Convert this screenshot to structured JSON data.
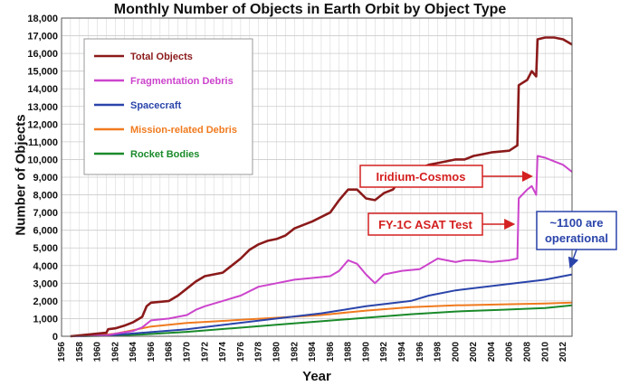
{
  "chart_data": {
    "type": "line",
    "title": "Monthly Number of Objects in Earth Orbit by Object Type",
    "xlabel": "Year",
    "ylabel": "Number of Objects",
    "xlim": [
      1956,
      2013
    ],
    "ylim": [
      0,
      18000
    ],
    "x_ticks": [
      1956,
      1958,
      1960,
      1962,
      1964,
      1966,
      1968,
      1970,
      1972,
      1974,
      1976,
      1978,
      1980,
      1982,
      1984,
      1986,
      1988,
      1990,
      1992,
      1994,
      1996,
      1998,
      2000,
      2002,
      2004,
      2006,
      2008,
      2010,
      2012
    ],
    "y_ticks": [
      0,
      1000,
      2000,
      3000,
      4000,
      5000,
      6000,
      7000,
      8000,
      9000,
      10000,
      11000,
      12000,
      13000,
      14000,
      15000,
      16000,
      17000,
      18000
    ],
    "series": [
      {
        "name": "Total Objects",
        "color": "#8b1a1a",
        "x": [
          1957,
          1961,
          1961.2,
          1962,
          1963,
          1964,
          1965,
          1965.5,
          1966,
          1968,
          1969,
          1970,
          1971,
          1972,
          1974,
          1975,
          1976,
          1977,
          1978,
          1979,
          1980,
          1981,
          1982,
          1984,
          1986,
          1987,
          1988,
          1989,
          1990,
          1991,
          1992,
          1993,
          1994,
          1996,
          1997,
          1998,
          2000,
          2001,
          2002,
          2003,
          2004,
          2006,
          2006.9,
          2007.05,
          2008,
          2008.5,
          2009,
          2009.15,
          2010,
          2011,
          2012,
          2013
        ],
        "y": [
          0,
          200,
          400,
          450,
          600,
          800,
          1100,
          1700,
          1900,
          2000,
          2300,
          2700,
          3100,
          3400,
          3600,
          4000,
          4400,
          4900,
          5200,
          5400,
          5500,
          5700,
          6100,
          6500,
          7000,
          7700,
          8300,
          8300,
          7800,
          7700,
          8100,
          8300,
          9000,
          9500,
          9700,
          9800,
          10000,
          10000,
          10200,
          10300,
          10400,
          10500,
          10800,
          14200,
          14500,
          15000,
          14700,
          16800,
          16900,
          16900,
          16800,
          16500
        ]
      },
      {
        "name": "Fragmentation Debris",
        "color": "#cc44cc",
        "x": [
          1957,
          1961,
          1962,
          1964,
          1965,
          1966,
          1968,
          1970,
          1971,
          1972,
          1974,
          1976,
          1978,
          1980,
          1982,
          1984,
          1986,
          1987,
          1988,
          1989,
          1990,
          1991,
          1992,
          1994,
          1996,
          1998,
          2000,
          2001,
          2002,
          2004,
          2006,
          2006.9,
          2007.05,
          2008,
          2008.5,
          2009,
          2009.15,
          2010,
          2011,
          2012,
          2013
        ],
        "y": [
          0,
          50,
          150,
          300,
          500,
          900,
          1000,
          1200,
          1500,
          1700,
          2000,
          2300,
          2800,
          3000,
          3200,
          3300,
          3400,
          3700,
          4300,
          4100,
          3500,
          3000,
          3500,
          3700,
          3800,
          4400,
          4200,
          4300,
          4300,
          4200,
          4300,
          4400,
          7800,
          8300,
          8500,
          8000,
          10200,
          10100,
          9900,
          9700,
          9300
        ]
      },
      {
        "name": "Spacecraft",
        "color": "#2a44aa",
        "x": [
          1957,
          1960,
          1962,
          1965,
          1970,
          1975,
          1980,
          1985,
          1990,
          1995,
          1997,
          2000,
          2005,
          2010,
          2013
        ],
        "y": [
          0,
          30,
          80,
          200,
          400,
          700,
          1000,
          1300,
          1700,
          2000,
          2300,
          2600,
          2900,
          3200,
          3500
        ]
      },
      {
        "name": "Mission-related Debris",
        "color": "#f07a1e",
        "x": [
          1957,
          1960,
          1962,
          1964,
          1966,
          1968,
          1970,
          1975,
          1980,
          1985,
          1990,
          1995,
          2000,
          2005,
          2010,
          2013
        ],
        "y": [
          0,
          50,
          150,
          350,
          550,
          650,
          750,
          900,
          1050,
          1200,
          1450,
          1650,
          1750,
          1800,
          1850,
          1900
        ]
      },
      {
        "name": "Rocket Bodies",
        "color": "#1a8a2a",
        "x": [
          1957,
          1960,
          1965,
          1970,
          1975,
          1980,
          1985,
          1990,
          1995,
          2000,
          2005,
          2010,
          2013
        ],
        "y": [
          0,
          20,
          100,
          250,
          450,
          650,
          850,
          1050,
          1250,
          1400,
          1500,
          1600,
          1750
        ]
      }
    ],
    "annotations": [
      {
        "text": "Iridium-Cosmos",
        "x": 2009.1,
        "y": 9200
      },
      {
        "text": "FY-1C ASAT Test",
        "x": 2007.0,
        "y": 6200
      },
      {
        "text": "~1100 are operational",
        "x": 2012.9,
        "y": 3500
      }
    ],
    "grid": true,
    "legend_position": "top-left"
  }
}
